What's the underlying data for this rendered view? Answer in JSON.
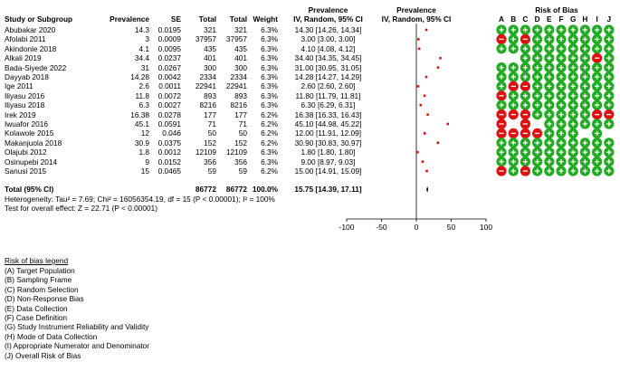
{
  "colors": {
    "low": "#22aa22",
    "high": "#dd1111",
    "marker": "#dd1111",
    "mark": "#ffffff"
  },
  "header": {
    "study": "Study or Subgroup",
    "prevalence": "Prevalence",
    "se": "SE",
    "total1": "Total",
    "total2": "Total",
    "weight": "Weight",
    "effect_top": "Prevalence",
    "effect_bottom": "IV, Random, 95% CI",
    "plot_top": "Prevalence",
    "plot_bottom": "IV, Random, 95% CI",
    "rob_title": "Risk of Bias",
    "rob_letters": [
      "A",
      "B",
      "C",
      "D",
      "E",
      "F",
      "G",
      "H",
      "I",
      "J"
    ]
  },
  "studies": [
    {
      "name": "Abubakar 2020",
      "prev": "14.3",
      "se": "0.0195",
      "t1": "321",
      "t2": "321",
      "w": "6.3%",
      "ci": "14.30 [14.26, 14.34]",
      "rob": [
        "L",
        "L",
        "L",
        "L",
        "L",
        "L",
        "L",
        "L",
        "L",
        "L"
      ]
    },
    {
      "name": "Afolabi 2011",
      "prev": "3",
      "se": "0.0009",
      "t1": "37957",
      "t2": "37957",
      "w": "6.3%",
      "ci": "3.00 [3.00, 3.00]",
      "rob": [
        "H",
        "L",
        "H",
        "L",
        "L",
        "L",
        "L",
        "L",
        "L",
        "L"
      ]
    },
    {
      "name": "Akindonle 2018",
      "prev": "4.1",
      "se": "0.0095",
      "t1": "435",
      "t2": "435",
      "w": "6.3%",
      "ci": "4.10 [4.08, 4.12]",
      "rob": [
        "L",
        "L",
        "L",
        "L",
        "L",
        "L",
        "L",
        "L",
        "L",
        "L"
      ]
    },
    {
      "name": "Alkali 2019",
      "prev": "34.4",
      "se": "0.0237",
      "t1": "401",
      "t2": "401",
      "w": "6.3%",
      "ci": "34.40 [34.35, 34.45]",
      "rob": [
        "",
        "",
        "L",
        "L",
        "L",
        "L",
        "L",
        "L",
        "H",
        "L"
      ]
    },
    {
      "name": "Bada-Siyede 2022",
      "prev": "31",
      "se": "0.0267",
      "t1": "300",
      "t2": "300",
      "w": "6.3%",
      "ci": "31.00 [30.95, 31.05]",
      "rob": [
        "L",
        "L",
        "L",
        "L",
        "L",
        "L",
        "L",
        "L",
        "L",
        "L"
      ]
    },
    {
      "name": "Dayyab 2018",
      "prev": "14.28",
      "se": "0.0042",
      "t1": "2334",
      "t2": "2334",
      "w": "6.3%",
      "ci": "14.28 [14.27, 14.29]",
      "rob": [
        "L",
        "L",
        "L",
        "L",
        "L",
        "L",
        "L",
        "L",
        "L",
        "L"
      ]
    },
    {
      "name": "Ige 2011",
      "prev": "2.6",
      "se": "0.0011",
      "t1": "22941",
      "t2": "22941",
      "w": "6.3%",
      "ci": "2.60 [2.60, 2.60]",
      "rob": [
        "L",
        "H",
        "H",
        "L",
        "L",
        "L",
        "L",
        "L",
        "L",
        "L"
      ]
    },
    {
      "name": "Iliyasu 2016",
      "prev": "11.8",
      "se": "0.0072",
      "t1": "893",
      "t2": "893",
      "w": "6.3%",
      "ci": "11.80 [11.79, 11.81]",
      "rob": [
        "H",
        "L",
        "L",
        "L",
        "L",
        "L",
        "L",
        "L",
        "L",
        "L"
      ]
    },
    {
      "name": "Iliyasu 2018",
      "prev": "6.3",
      "se": "0.0027",
      "t1": "8216",
      "t2": "8216",
      "w": "6.3%",
      "ci": "6.30 [6.29, 6.31]",
      "rob": [
        "L",
        "L",
        "L",
        "L",
        "L",
        "L",
        "L",
        "L",
        "L",
        "L"
      ]
    },
    {
      "name": "Irek 2019",
      "prev": "16.38",
      "se": "0.0278",
      "t1": "177",
      "t2": "177",
      "w": "6.2%",
      "ci": "16.38 [16.33, 16.43]",
      "rob": [
        "H",
        "H",
        "H",
        "L",
        "L",
        "L",
        "L",
        "L",
        "H",
        "H"
      ]
    },
    {
      "name": "Iwuafor 2016",
      "prev": "45.1",
      "se": "0.0591",
      "t1": "71",
      "t2": "71",
      "w": "6.2%",
      "ci": "45.10 [44.98, 45.22]",
      "rob": [
        "H",
        "",
        "H",
        "",
        "L",
        "L",
        "L",
        "L",
        "L",
        "L"
      ]
    },
    {
      "name": "Kolawole 2015",
      "prev": "12",
      "se": "0.046",
      "t1": "50",
      "t2": "50",
      "w": "6.2%",
      "ci": "12.00 [11.91, 12.09]",
      "rob": [
        "H",
        "H",
        "H",
        "H",
        "L",
        "L",
        "L",
        "",
        "L",
        ""
      ]
    },
    {
      "name": "Makanjuola 2018",
      "prev": "30.9",
      "se": "0.0375",
      "t1": "152",
      "t2": "152",
      "w": "6.2%",
      "ci": "30.90 [30.83, 30.97]",
      "rob": [
        "L",
        "L",
        "L",
        "L",
        "L",
        "L",
        "L",
        "L",
        "L",
        "L"
      ]
    },
    {
      "name": "Olajubi 2012",
      "prev": "1.8",
      "se": "0.0012",
      "t1": "12109",
      "t2": "12109",
      "w": "6.3%",
      "ci": "1.80 [1.80, 1.80]",
      "rob": [
        "L",
        "L",
        "L",
        "L",
        "L",
        "L",
        "L",
        "L",
        "L",
        "L"
      ]
    },
    {
      "name": "Osinupebi 2014",
      "prev": "9",
      "se": "0.0152",
      "t1": "356",
      "t2": "356",
      "w": "6.3%",
      "ci": "9.00 [8.97, 9.03]",
      "rob": [
        "L",
        "L",
        "L",
        "L",
        "L",
        "L",
        "L",
        "L",
        "L",
        "L"
      ]
    },
    {
      "name": "Sanusi 2015",
      "prev": "15",
      "se": "0.0465",
      "t1": "59",
      "t2": "59",
      "w": "6.2%",
      "ci": "15.00 [14.91, 15.09]",
      "rob": [
        "H",
        "L",
        "H",
        "L",
        "L",
        "L",
        "L",
        "L",
        "L",
        "L"
      ]
    }
  ],
  "total": {
    "label": "Total (95% CI)",
    "t1": "86772",
    "t2": "86772",
    "w": "100.0%",
    "ci": "15.75 [14.39, 17.11]",
    "heterogeneity": "Heterogeneity: Tau² = 7.69; Chi² = 16056354.19, df = 15 (P < 0.00001); I² = 100%",
    "overall": "Test for overall effect: Z = 22.71 (P < 0.00001)"
  },
  "legend": {
    "title": "Risk of bias legend",
    "items": [
      "(A) Target Population",
      "(B) Sampling Frame",
      "(C) Random Selection",
      "(D) Non-Response Bias",
      "(E) Data Collection",
      "(F) Case Definition",
      "(G) Study Instrument Reliability and Validity",
      "(H) Mode of Data Collection",
      "(I) Appropriate Numerator and Denominator",
      "(J) Overall Risk of Bias"
    ]
  },
  "chart_data": {
    "type": "scatter",
    "subtype": "forest-plot",
    "title": "Prevalence",
    "xlabel": "IV, Random, 95% CI",
    "xlim": [
      -100,
      100
    ],
    "xticks": [
      "-100",
      "-50",
      "0",
      "50",
      "100"
    ],
    "categories": [
      "Abubakar 2020",
      "Afolabi 2011",
      "Akindonle 2018",
      "Alkali 2019",
      "Bada-Siyede 2022",
      "Dayyab 2018",
      "Ige 2011",
      "Iliyasu 2016",
      "Iliyasu 2018",
      "Irek 2019",
      "Iwuafor 2016",
      "Kolawole 2015",
      "Makanjuola 2018",
      "Olajubi 2012",
      "Osinupebi 2014",
      "Sanusi 2015"
    ],
    "points": [
      14.3,
      3.0,
      4.1,
      34.4,
      31.0,
      14.28,
      2.6,
      11.8,
      6.3,
      16.38,
      45.1,
      12.0,
      30.9,
      1.8,
      9.0,
      15.0
    ],
    "lower": [
      14.26,
      3.0,
      4.08,
      34.35,
      30.95,
      14.27,
      2.6,
      11.79,
      6.29,
      16.33,
      44.98,
      11.91,
      30.83,
      1.8,
      8.97,
      14.91
    ],
    "upper": [
      14.34,
      3.0,
      4.12,
      34.45,
      31.05,
      14.29,
      2.6,
      11.81,
      6.31,
      16.43,
      45.22,
      12.09,
      30.97,
      1.8,
      9.03,
      15.09
    ],
    "pooled": {
      "estimate": 15.75,
      "lower": 14.39,
      "upper": 17.11
    }
  }
}
